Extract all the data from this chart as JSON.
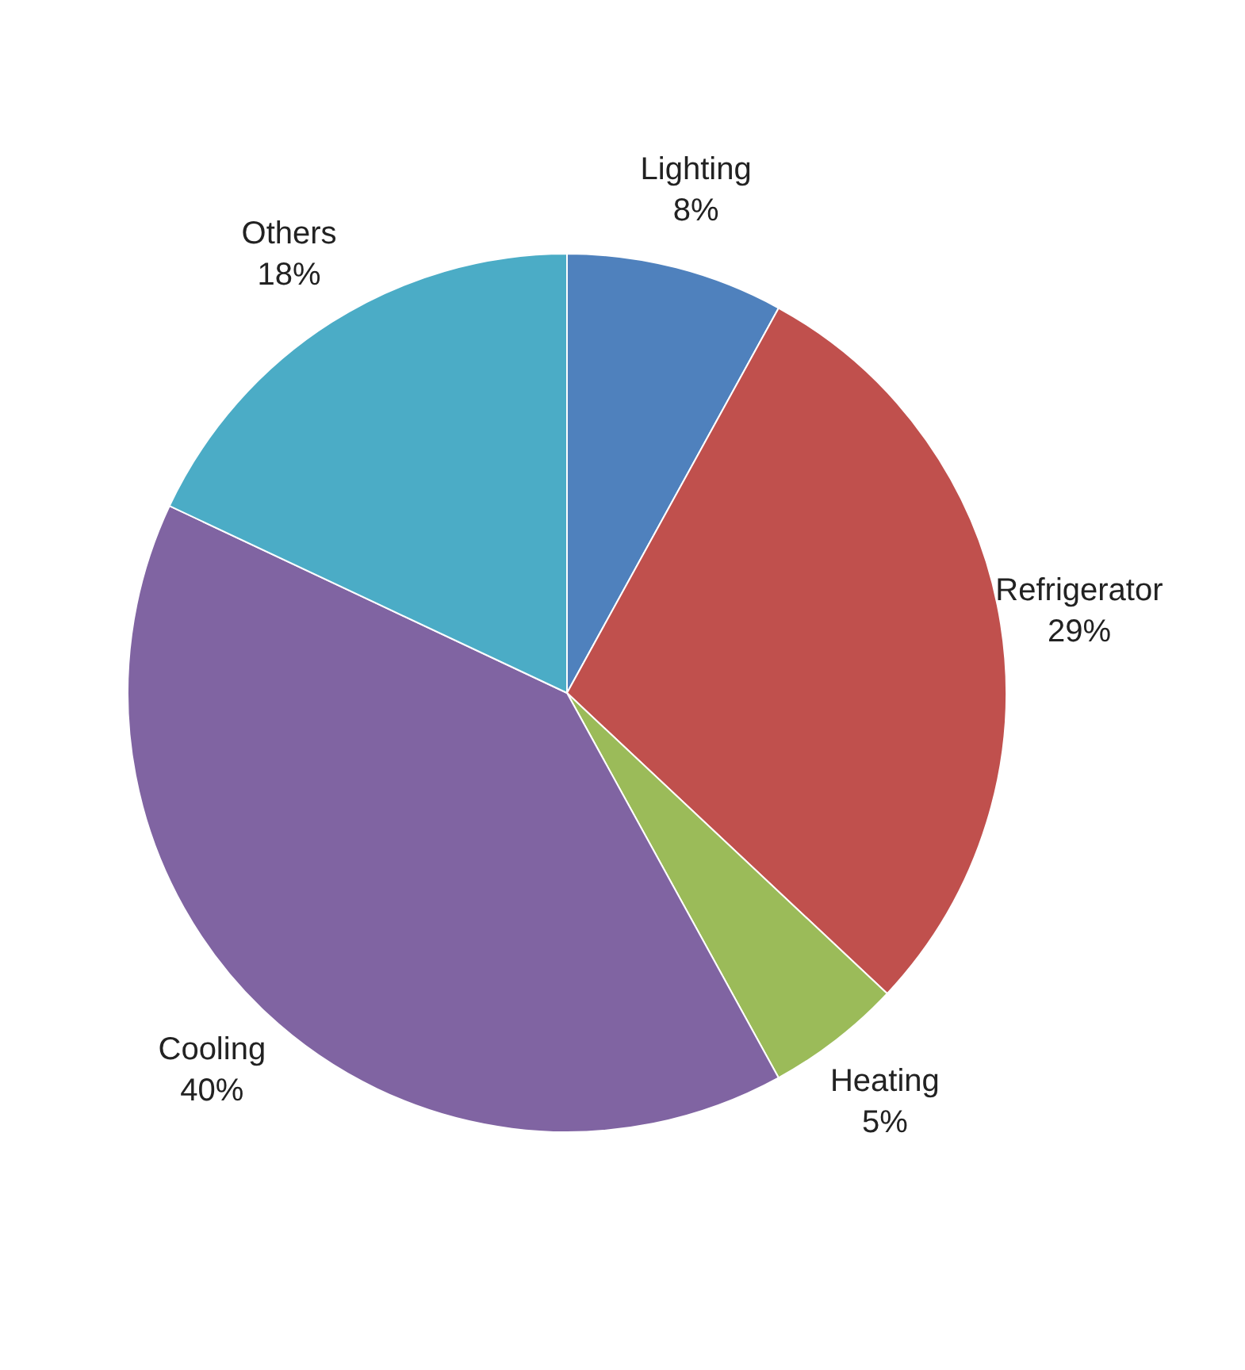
{
  "chart_data": {
    "type": "pie",
    "categories": [
      "Lighting",
      "Refrigerator",
      "Heating",
      "Cooling",
      "Others"
    ],
    "values": [
      8,
      29,
      5,
      40,
      18
    ],
    "value_labels": [
      "8%",
      "29%",
      "5%",
      "40%",
      "18%"
    ],
    "colors": [
      "#4f81bd",
      "#c0504d",
      "#9bbb59",
      "#8064a2",
      "#4bacc6"
    ],
    "legend": false
  }
}
